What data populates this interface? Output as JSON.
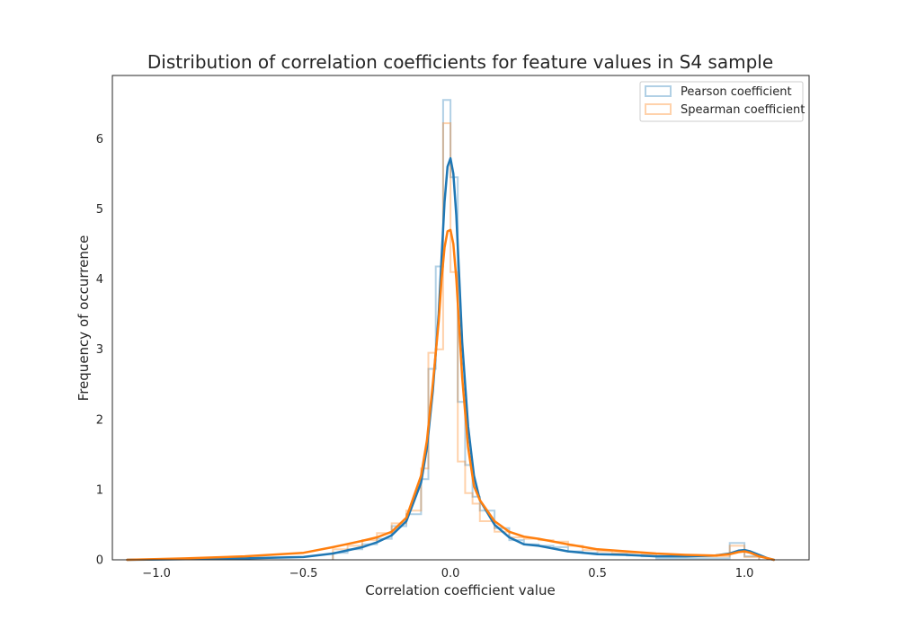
{
  "chart_data": {
    "type": "area",
    "title": "Distribution of correlation coefficients for feature values in S4 sample",
    "xlabel": "Correlation coefficient value",
    "ylabel": "Frequency of occurrence",
    "xlim": [
      -1.15,
      1.22
    ],
    "ylim": [
      0,
      6.9
    ],
    "xticks": [
      -1.0,
      -0.5,
      0.0,
      0.5,
      1.0
    ],
    "xtick_labels": [
      "−1.0",
      "−0.5",
      "0.0",
      "0.5",
      "1.0"
    ],
    "yticks": [
      0,
      1,
      2,
      3,
      4,
      5,
      6
    ],
    "ytick_labels": [
      "0",
      "1",
      "2",
      "3",
      "4",
      "5",
      "6"
    ],
    "grid": false,
    "legend_position": "top-right",
    "series": [
      {
        "name": "Pearson coefficient",
        "color": "#1f77b4",
        "hist_edges": [
          -0.4,
          -0.35,
          -0.3,
          -0.25,
          -0.2,
          -0.15,
          -0.1,
          -0.075,
          -0.05,
          -0.025,
          0.0,
          0.025,
          0.05,
          0.075,
          0.1,
          0.15,
          0.2,
          0.25,
          0.3,
          0.35,
          0.4,
          0.45,
          0.5,
          0.55,
          0.6,
          0.65,
          0.7,
          0.95,
          1.0,
          1.05
        ],
        "hist_counts": [
          0.1,
          0.15,
          0.22,
          0.3,
          0.48,
          0.65,
          1.15,
          2.72,
          4.18,
          6.55,
          5.45,
          2.25,
          1.35,
          0.9,
          0.7,
          0.45,
          0.28,
          0.22,
          0.2,
          0.18,
          0.12,
          0.1,
          0.08,
          0.08,
          0.06,
          0.05,
          0.02,
          0.24,
          0.05
        ],
        "kde_x": [
          -1.1,
          -0.9,
          -0.7,
          -0.5,
          -0.4,
          -0.3,
          -0.25,
          -0.2,
          -0.15,
          -0.1,
          -0.08,
          -0.06,
          -0.04,
          -0.03,
          -0.02,
          -0.01,
          0.0,
          0.01,
          0.02,
          0.03,
          0.04,
          0.06,
          0.08,
          0.1,
          0.15,
          0.2,
          0.25,
          0.3,
          0.4,
          0.5,
          0.6,
          0.7,
          0.8,
          0.9,
          0.95,
          0.98,
          1.0,
          1.02,
          1.05,
          1.08,
          1.1
        ],
        "kde_y": [
          0.0,
          0.01,
          0.02,
          0.04,
          0.09,
          0.18,
          0.25,
          0.35,
          0.55,
          1.1,
          1.6,
          2.4,
          3.5,
          4.3,
          5.1,
          5.6,
          5.72,
          5.5,
          4.9,
          4.0,
          3.1,
          1.9,
          1.2,
          0.85,
          0.5,
          0.32,
          0.22,
          0.2,
          0.12,
          0.08,
          0.07,
          0.05,
          0.05,
          0.06,
          0.09,
          0.13,
          0.14,
          0.12,
          0.07,
          0.02,
          0.0
        ]
      },
      {
        "name": "Spearman coefficient",
        "color": "#ff7f0e",
        "hist_edges": [
          -0.4,
          -0.35,
          -0.3,
          -0.25,
          -0.2,
          -0.15,
          -0.1,
          -0.075,
          -0.05,
          -0.025,
          0.0,
          0.025,
          0.05,
          0.075,
          0.1,
          0.15,
          0.2,
          0.25,
          0.3,
          0.35,
          0.4,
          0.45,
          0.5,
          0.55,
          0.6,
          0.65,
          0.7,
          0.95,
          1.0,
          1.05
        ],
        "hist_counts": [
          0.15,
          0.2,
          0.28,
          0.38,
          0.52,
          0.7,
          1.3,
          2.95,
          3.0,
          6.22,
          4.1,
          1.4,
          0.95,
          0.8,
          0.55,
          0.4,
          0.32,
          0.3,
          0.28,
          0.26,
          0.2,
          0.14,
          0.12,
          0.1,
          0.1,
          0.08,
          0.05,
          0.2,
          0.04
        ],
        "kde_x": [
          -1.1,
          -0.9,
          -0.7,
          -0.5,
          -0.4,
          -0.3,
          -0.25,
          -0.2,
          -0.15,
          -0.1,
          -0.08,
          -0.06,
          -0.04,
          -0.03,
          -0.02,
          -0.01,
          0.0,
          0.01,
          0.02,
          0.03,
          0.04,
          0.06,
          0.08,
          0.1,
          0.15,
          0.2,
          0.25,
          0.3,
          0.4,
          0.5,
          0.6,
          0.7,
          0.8,
          0.9,
          0.95,
          0.98,
          1.0,
          1.02,
          1.05,
          1.08,
          1.1
        ],
        "kde_y": [
          0.0,
          0.02,
          0.05,
          0.1,
          0.18,
          0.27,
          0.32,
          0.4,
          0.6,
          1.2,
          1.7,
          2.5,
          3.4,
          4.0,
          4.45,
          4.68,
          4.7,
          4.5,
          4.0,
          3.3,
          2.6,
          1.6,
          1.05,
          0.85,
          0.55,
          0.4,
          0.33,
          0.3,
          0.22,
          0.15,
          0.12,
          0.09,
          0.07,
          0.06,
          0.08,
          0.11,
          0.12,
          0.1,
          0.05,
          0.02,
          0.0
        ]
      }
    ]
  }
}
